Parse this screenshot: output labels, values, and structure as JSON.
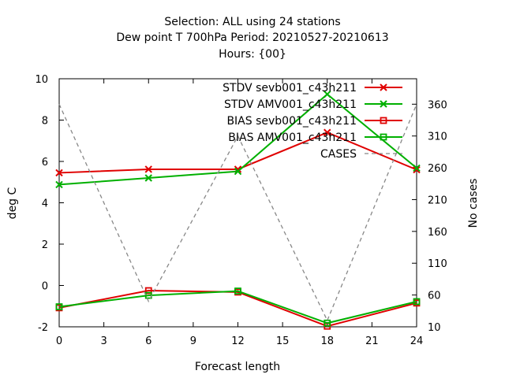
{
  "title_lines": [
    "Selection: ALL using    24 stations",
    "Dew point T 700hPa   Period: 20210527-20210613",
    "Hours: {00}"
  ],
  "chart_data": {
    "type": "line",
    "xlabel": "Forecast length",
    "ylabel": "deg C",
    "y2label": "No cases",
    "xlim": [
      0,
      24
    ],
    "ylim": [
      -2,
      10
    ],
    "y2lim": [
      10,
      400
    ],
    "xticks": [
      0,
      3,
      6,
      9,
      12,
      15,
      18,
      21,
      24
    ],
    "yticks": [
      -2,
      0,
      2,
      4,
      6,
      8,
      10
    ],
    "y2ticks": [
      10,
      60,
      110,
      160,
      210,
      260,
      310,
      360
    ],
    "legend_position": "top-right",
    "series": [
      {
        "name": "STDV sevb001_c43h211",
        "axis": "y",
        "color": "#e00000",
        "marker": "x",
        "x": [
          0,
          6,
          12,
          18,
          24
        ],
        "y": [
          5.45,
          5.62,
          5.62,
          7.4,
          5.6
        ]
      },
      {
        "name": "STDV AMV001_c43h211",
        "axis": "y",
        "color": "#00b000",
        "marker": "x",
        "x": [
          0,
          6,
          12,
          18,
          24
        ],
        "y": [
          4.88,
          5.2,
          5.52,
          9.25,
          5.68
        ]
      },
      {
        "name": "BIAS sevb001_c43h211",
        "axis": "y",
        "color": "#e00000",
        "marker": "square",
        "x": [
          0,
          6,
          12,
          18,
          24
        ],
        "y": [
          -1.08,
          -0.25,
          -0.32,
          -1.97,
          -0.85
        ]
      },
      {
        "name": "BIAS AMV001_c43h211",
        "axis": "y",
        "color": "#00b000",
        "marker": "square",
        "x": [
          0,
          6,
          12,
          18,
          24
        ],
        "y": [
          -1.03,
          -0.48,
          -0.27,
          -1.82,
          -0.78
        ]
      },
      {
        "name": "CASES",
        "axis": "y2",
        "color": "#888888",
        "marker": "none",
        "dashed": true,
        "x": [
          0,
          6,
          12,
          18,
          24
        ],
        "y": [
          360,
          50,
          310,
          20,
          360
        ]
      }
    ]
  }
}
